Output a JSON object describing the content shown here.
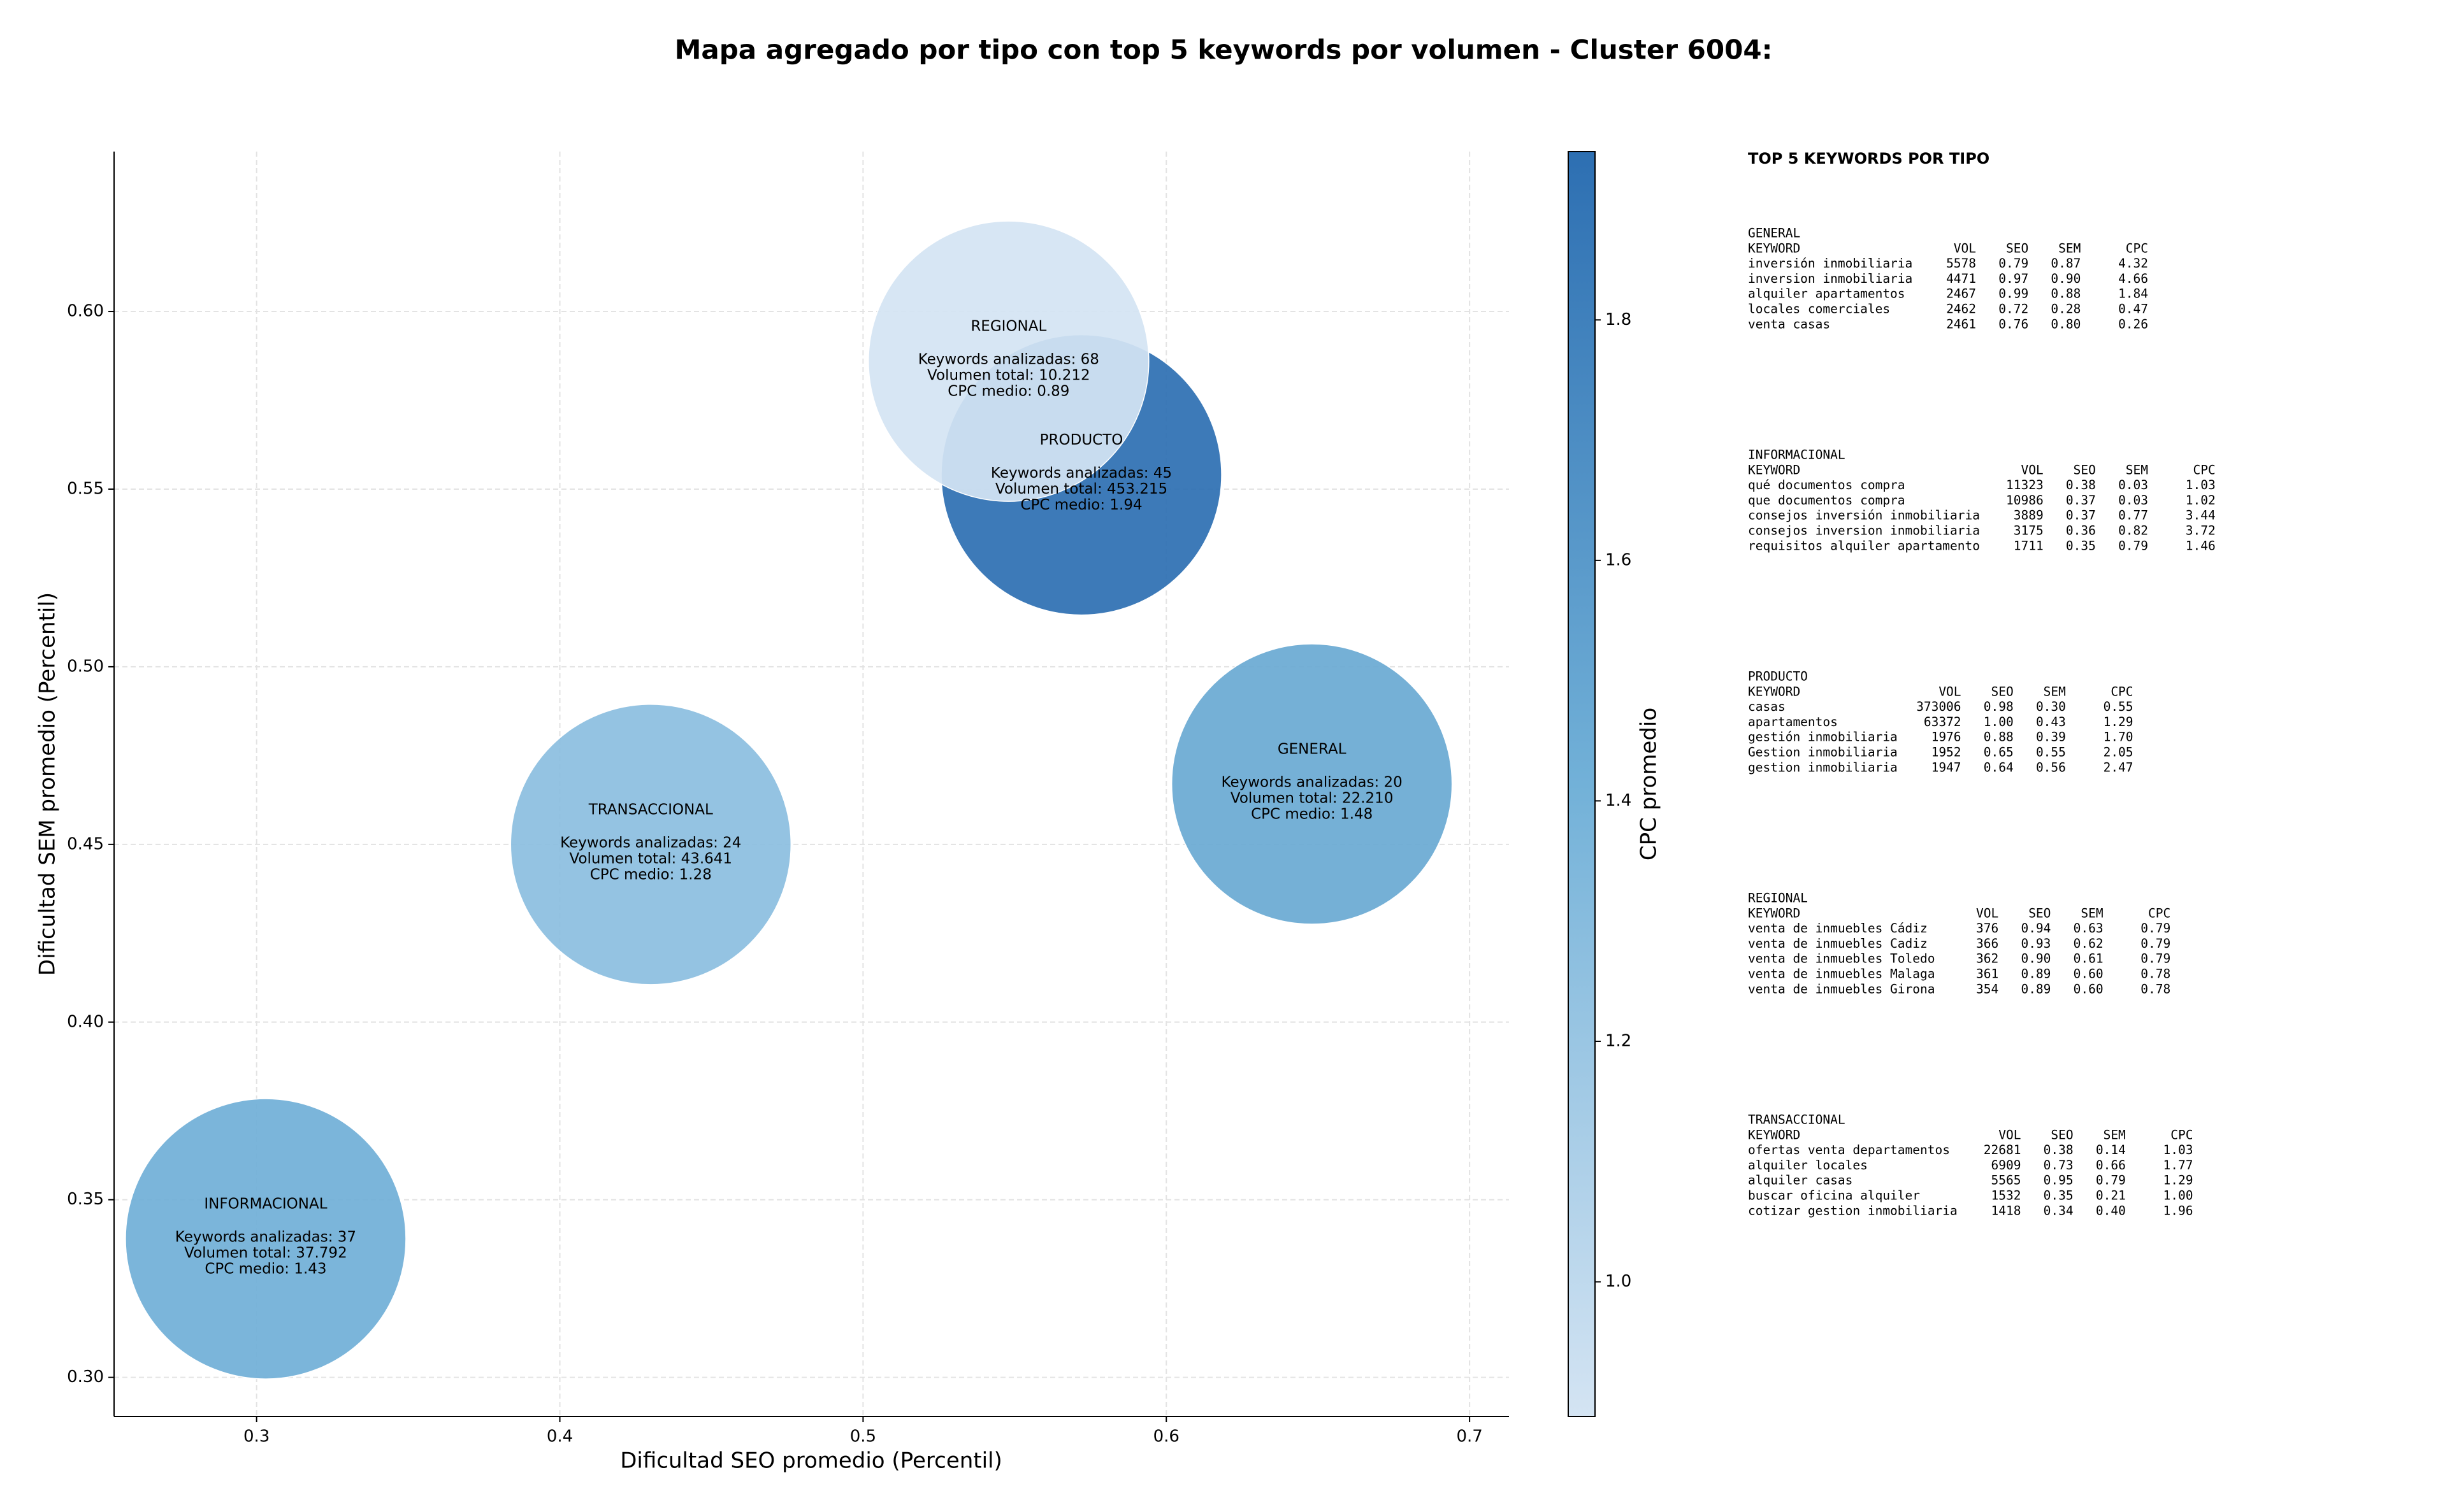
{
  "chart_data": {
    "type": "bubble",
    "title": "Mapa agregado por tipo con top 5 keywords por volumen - Cluster 6004:",
    "x_label": "Dificultad SEO promedio (Percentil)",
    "y_label": "Dificultad SEM promedio (Percentil)",
    "colorbar_label": "CPC promedio",
    "xlim": [
      0.253,
      0.713
    ],
    "ylim": [
      0.289,
      0.645
    ],
    "xticks": [
      0.3,
      0.4,
      0.5,
      0.6,
      0.7
    ],
    "yticks": [
      {
        "value": 0.3,
        "label": "0.30"
      },
      0.35,
      {
        "value": 0.4,
        "label": "0.40"
      },
      0.45,
      {
        "value": 0.5,
        "label": "0.50"
      },
      0.55,
      {
        "value": 0.6,
        "label": "0.60"
      }
    ],
    "clim": [
      0.888,
      1.94
    ],
    "cticks": [
      {
        "value": 1,
        "label": "1.0"
      },
      {
        "value": 1.2,
        "label": "1.2"
      },
      {
        "value": 1.4,
        "label": "1.4"
      },
      {
        "value": 1.6,
        "label": "1.6"
      },
      {
        "value": 1.8,
        "label": "1.8"
      }
    ],
    "colormap": [
      "#d4e4f3",
      "#72b1d8",
      "#2d6fb2"
    ],
    "grid": true,
    "points": [
      {
        "label": "GENERAL",
        "x": 0.648,
        "y": 0.467,
        "cpc": 1.48,
        "keywords_text": "Keywords analizadas: 20",
        "volume_text": "Volumen total: 22.210",
        "cpc_text": "CPC medio: 1.48"
      },
      {
        "label": "INFORMACIONAL",
        "x": 0.303,
        "y": 0.339,
        "cpc": 1.43,
        "keywords_text": "Keywords analizadas: 37",
        "volume_text": "Volumen total: 37.792",
        "cpc_text": "CPC medio: 1.43"
      },
      {
        "label": "PRODUCTO",
        "x": 0.572,
        "y": 0.554,
        "cpc": 1.94,
        "keywords_text": "Keywords analizadas: 45",
        "volume_text": "Volumen total: 453.215",
        "cpc_text": "CPC medio: 1.94"
      },
      {
        "label": "REGIONAL",
        "x": 0.548,
        "y": 0.586,
        "cpc": 0.89,
        "keywords_text": "Keywords analizadas: 68",
        "volume_text": "Volumen total: 10.212",
        "cpc_text": "CPC medio: 0.89"
      },
      {
        "label": "TRANSACCIONAL",
        "x": 0.43,
        "y": 0.45,
        "cpc": 1.28,
        "keywords_text": "Keywords analizadas: 24",
        "volume_text": "Volumen total: 43.641",
        "cpc_text": "CPC medio: 1.28"
      }
    ]
  },
  "keywords_panel": {
    "title": "TOP 5 KEYWORDS POR TIPO",
    "columns": [
      "KEYWORD",
      "VOL",
      "SEO",
      "SEM",
      "CPC"
    ],
    "sections": [
      {
        "name": "GENERAL",
        "rows": [
          [
            "inversión inmobiliaria",
            "5578",
            "0.79",
            "0.87",
            "4.32"
          ],
          [
            "inversion inmobiliaria",
            "4471",
            "0.97",
            "0.90",
            "4.66"
          ],
          [
            "alquiler apartamentos",
            "2467",
            "0.99",
            "0.88",
            "1.84"
          ],
          [
            "locales comerciales",
            "2462",
            "0.72",
            "0.28",
            "0.47"
          ],
          [
            "venta casas",
            "2461",
            "0.76",
            "0.80",
            "0.26"
          ]
        ]
      },
      {
        "name": "INFORMACIONAL",
        "rows": [
          [
            "qué documentos compra",
            "11323",
            "0.38",
            "0.03",
            "1.03"
          ],
          [
            "que documentos compra",
            "10986",
            "0.37",
            "0.03",
            "1.02"
          ],
          [
            "consejos inversión inmobiliaria",
            "3889",
            "0.37",
            "0.77",
            "3.44"
          ],
          [
            "consejos inversion inmobiliaria",
            "3175",
            "0.36",
            "0.82",
            "3.72"
          ],
          [
            "requisitos alquiler apartamento",
            "1711",
            "0.35",
            "0.79",
            "1.46"
          ]
        ]
      },
      {
        "name": "PRODUCTO",
        "rows": [
          [
            "casas",
            "373006",
            "0.98",
            "0.30",
            "0.55"
          ],
          [
            "apartamentos",
            "63372",
            "1.00",
            "0.43",
            "1.29"
          ],
          [
            "gestión inmobiliaria",
            "1976",
            "0.88",
            "0.39",
            "1.70"
          ],
          [
            "Gestion inmobiliaria",
            "1952",
            "0.65",
            "0.55",
            "2.05"
          ],
          [
            "gestion inmobiliaria",
            "1947",
            "0.64",
            "0.56",
            "2.47"
          ]
        ]
      },
      {
        "name": "REGIONAL",
        "rows": [
          [
            "venta de inmuebles Cádiz",
            "376",
            "0.94",
            "0.63",
            "0.79"
          ],
          [
            "venta de inmuebles Cadiz",
            "366",
            "0.93",
            "0.62",
            "0.79"
          ],
          [
            "venta de inmuebles Toledo",
            "362",
            "0.90",
            "0.61",
            "0.79"
          ],
          [
            "venta de inmuebles Malaga",
            "361",
            "0.89",
            "0.60",
            "0.78"
          ],
          [
            "venta de inmuebles Girona",
            "354",
            "0.89",
            "0.60",
            "0.78"
          ]
        ]
      },
      {
        "name": "TRANSACCIONAL",
        "rows": [
          [
            "ofertas venta departamentos",
            "22681",
            "0.38",
            "0.14",
            "1.03"
          ],
          [
            "alquiler locales",
            "6909",
            "0.73",
            "0.66",
            "1.77"
          ],
          [
            "alquiler casas",
            "5565",
            "0.95",
            "0.79",
            "1.29"
          ],
          [
            "buscar oficina alquiler",
            "1532",
            "0.35",
            "0.21",
            "1.00"
          ],
          [
            "cotizar gestion inmobiliaria",
            "1418",
            "0.34",
            "0.40",
            "1.96"
          ]
        ]
      }
    ]
  }
}
